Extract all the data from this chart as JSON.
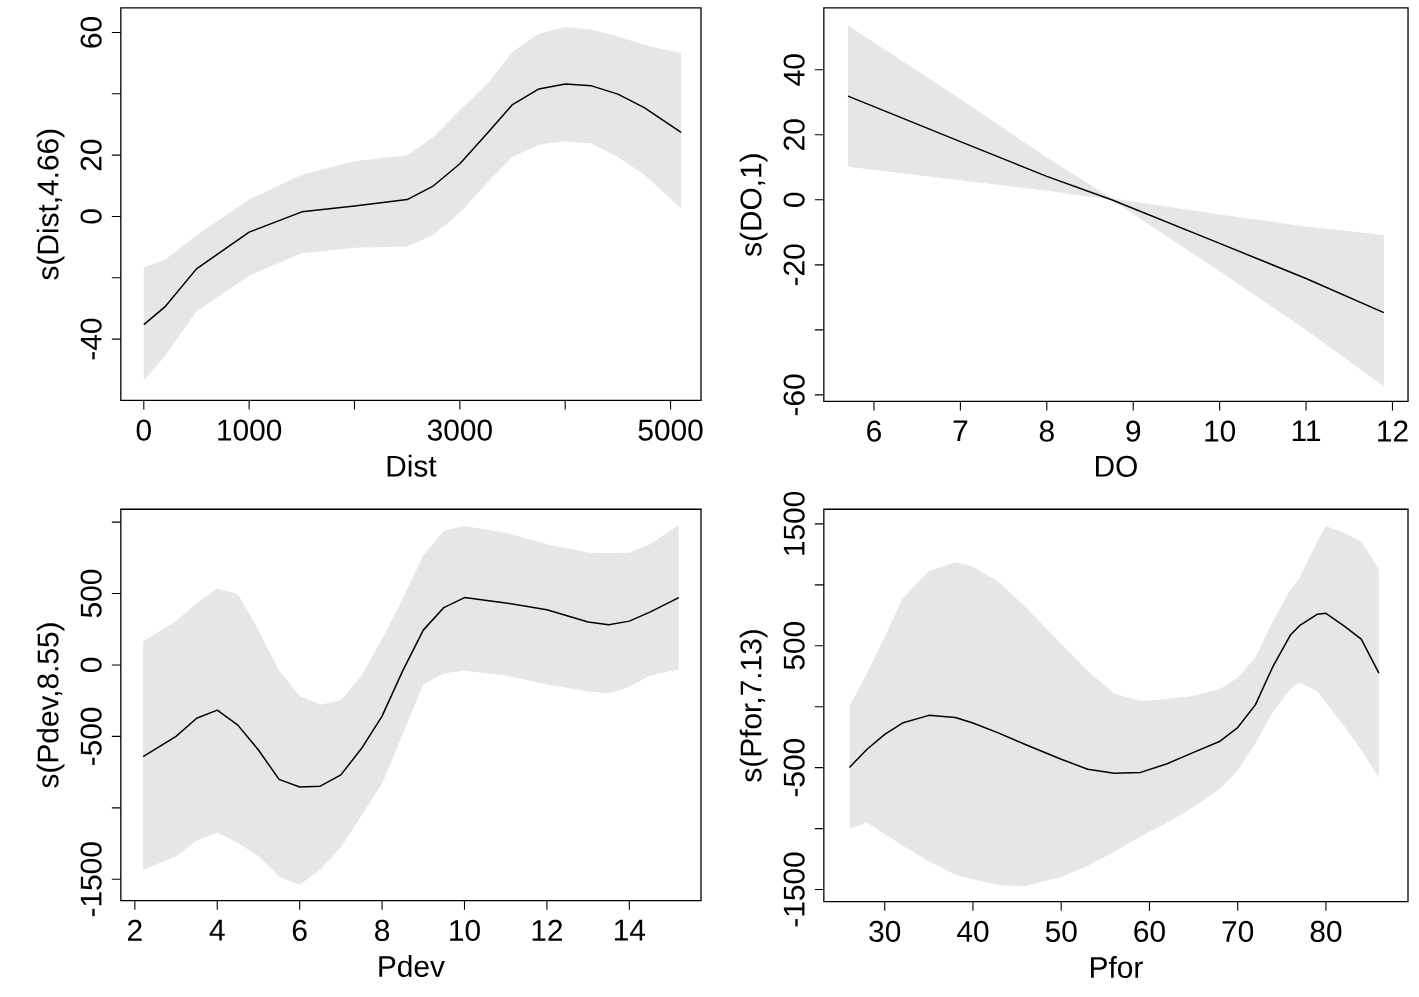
{
  "chart_data": [
    {
      "type": "line",
      "xlabel": "Dist",
      "ylabel": "s(Dist,4.66)",
      "xlim": [
        -218,
        5289
      ],
      "ylim": [
        -60,
        68
      ],
      "xticks": [
        0,
        1000,
        {
          "value": 2000,
          "label": null
        },
        3000,
        {
          "value": 4000,
          "label": null
        },
        5000
      ],
      "yticks": [
        -40,
        {
          "value": -20,
          "label": null
        },
        0,
        20,
        {
          "value": 40,
          "label": null
        },
        60
      ],
      "x": [
        0,
        200,
        500,
        1000,
        1500,
        2000,
        2500,
        2750,
        3000,
        3250,
        3500,
        3750,
        4000,
        4250,
        4500,
        4750,
        5100
      ],
      "series": [
        {
          "color": "#000000",
          "values": [
            -35.3,
            -29.5,
            -17.1,
            -5.1,
            1.5,
            3.4,
            5.5,
            10,
            17.2,
            26.7,
            36.5,
            41.6,
            43.2,
            42.6,
            39.9,
            35.5,
            27.4
          ],
          "upper": [
            -16.6,
            -14.2,
            -6.1,
            5.5,
            13.6,
            18,
            20,
            26,
            34.7,
            42.8,
            53.7,
            59.6,
            61.8,
            61,
            58.8,
            55.9,
            53.3
          ],
          "lower": [
            -53.6,
            -45.5,
            -31,
            -19.3,
            -12,
            -10.2,
            -9.8,
            -6,
            1.2,
            10.7,
            19.4,
            23.4,
            24.5,
            23.8,
            19.4,
            13.6,
            2.6
          ]
        }
      ]
    },
    {
      "type": "line",
      "xlabel": "DO",
      "ylabel": "s(DO,1)",
      "xlim": [
        5.42,
        12.18
      ],
      "ylim": [
        -62,
        59
      ],
      "xticks": [
        6,
        7,
        8,
        9,
        10,
        11,
        12
      ],
      "yticks": [
        -60,
        {
          "value": -40,
          "label": null
        },
        -20,
        0,
        20,
        40
      ],
      "x": [
        5.7,
        7,
        8,
        8.75,
        10,
        11,
        11.9
      ],
      "series": [
        {
          "color": "#000000",
          "values": [
            31.9,
            17.9,
            7.2,
            0,
            -13.4,
            -24.2,
            -34.7
          ],
          "upper": [
            53.6,
            31,
            13,
            0.5,
            -4.5,
            -8.2,
            -10.8
          ],
          "lower": [
            10.2,
            6,
            2.8,
            0,
            -22,
            -40,
            -57.3
          ]
        }
      ]
    },
    {
      "type": "line",
      "xlabel": "Pdev",
      "ylabel": "s(Pdev,8.55)",
      "xlim": [
        1.66,
        15.74
      ],
      "ylim": [
        -1650,
        1090
      ],
      "xticks": [
        2,
        4,
        6,
        8,
        10,
        12,
        14
      ],
      "yticks": [
        -1500,
        {
          "value": -1000,
          "label": null
        },
        -500,
        0,
        500,
        {
          "value": 1000,
          "label": null
        }
      ],
      "x": [
        2.2,
        3,
        3.5,
        4,
        4.5,
        5,
        5.5,
        6,
        6.5,
        7,
        7.5,
        8,
        8.5,
        9,
        9.5,
        10,
        11,
        12,
        13,
        13.5,
        14,
        14.5,
        15.2
      ],
      "series": [
        {
          "color": "#000000",
          "values": [
            -642,
            -500,
            -373,
            -316,
            -421,
            -595,
            -801,
            -854,
            -848,
            -769,
            -585,
            -358,
            -41,
            244,
            402,
            472,
            434,
            386,
            301,
            282,
            307,
            370,
            472
          ],
          "upper": [
            165,
            307,
            434,
            535,
            497,
            244,
            -41,
            -215,
            -278,
            -247,
            -73,
            180,
            465,
            766,
            940,
            972,
            924,
            845,
            788,
            782,
            788,
            845,
            978
          ],
          "lower": [
            -1434,
            -1339,
            -1228,
            -1174,
            -1244,
            -1339,
            -1481,
            -1538,
            -1434,
            -1275,
            -1054,
            -832,
            -484,
            -136,
            -57,
            -41,
            -73,
            -136,
            -184,
            -199,
            -152,
            -73,
            -32
          ]
        }
      ]
    },
    {
      "type": "line",
      "xlabel": "Pfor",
      "ylabel": "s(Pfor,7.13)",
      "xlim": [
        23.1,
        89.3
      ],
      "ylim": [
        -1600,
        1620
      ],
      "xticks": [
        30,
        40,
        50,
        60,
        70,
        80
      ],
      "yticks": [
        -1500,
        {
          "value": -1000,
          "label": null
        },
        -500,
        {
          "value": 0,
          "label": null
        },
        500,
        {
          "value": 1000,
          "label": null
        },
        1500
      ],
      "x": [
        26,
        28,
        30,
        32,
        35,
        38,
        40,
        43,
        46,
        50,
        53,
        56,
        59,
        62,
        65,
        68,
        70,
        72,
        74,
        76,
        77,
        79,
        80,
        82,
        84,
        86
      ],
      "series": [
        {
          "color": "#000000",
          "values": [
            -498,
            -349,
            -227,
            -134,
            -71,
            -89,
            -134,
            -219,
            -312,
            -431,
            -513,
            -546,
            -539,
            -468,
            -375,
            -283,
            -171,
            15,
            331,
            591,
            665,
            758,
            766,
            665,
            554,
            275
          ],
          "upper": [
            4,
            275,
            572,
            888,
            1112,
            1186,
            1149,
            1019,
            814,
            517,
            294,
            108,
            45,
            63,
            89,
            145,
            238,
            405,
            703,
            963,
            1056,
            1353,
            1483,
            1428,
            1353,
            1130
          ],
          "lower": [
            -1000,
            -952,
            -1045,
            -1138,
            -1268,
            -1379,
            -1416,
            -1465,
            -1472,
            -1398,
            -1305,
            -1193,
            -1063,
            -952,
            -822,
            -673,
            -524,
            -301,
            -41,
            145,
            201,
            126,
            33,
            -152,
            -357,
            -580
          ]
        }
      ]
    }
  ]
}
